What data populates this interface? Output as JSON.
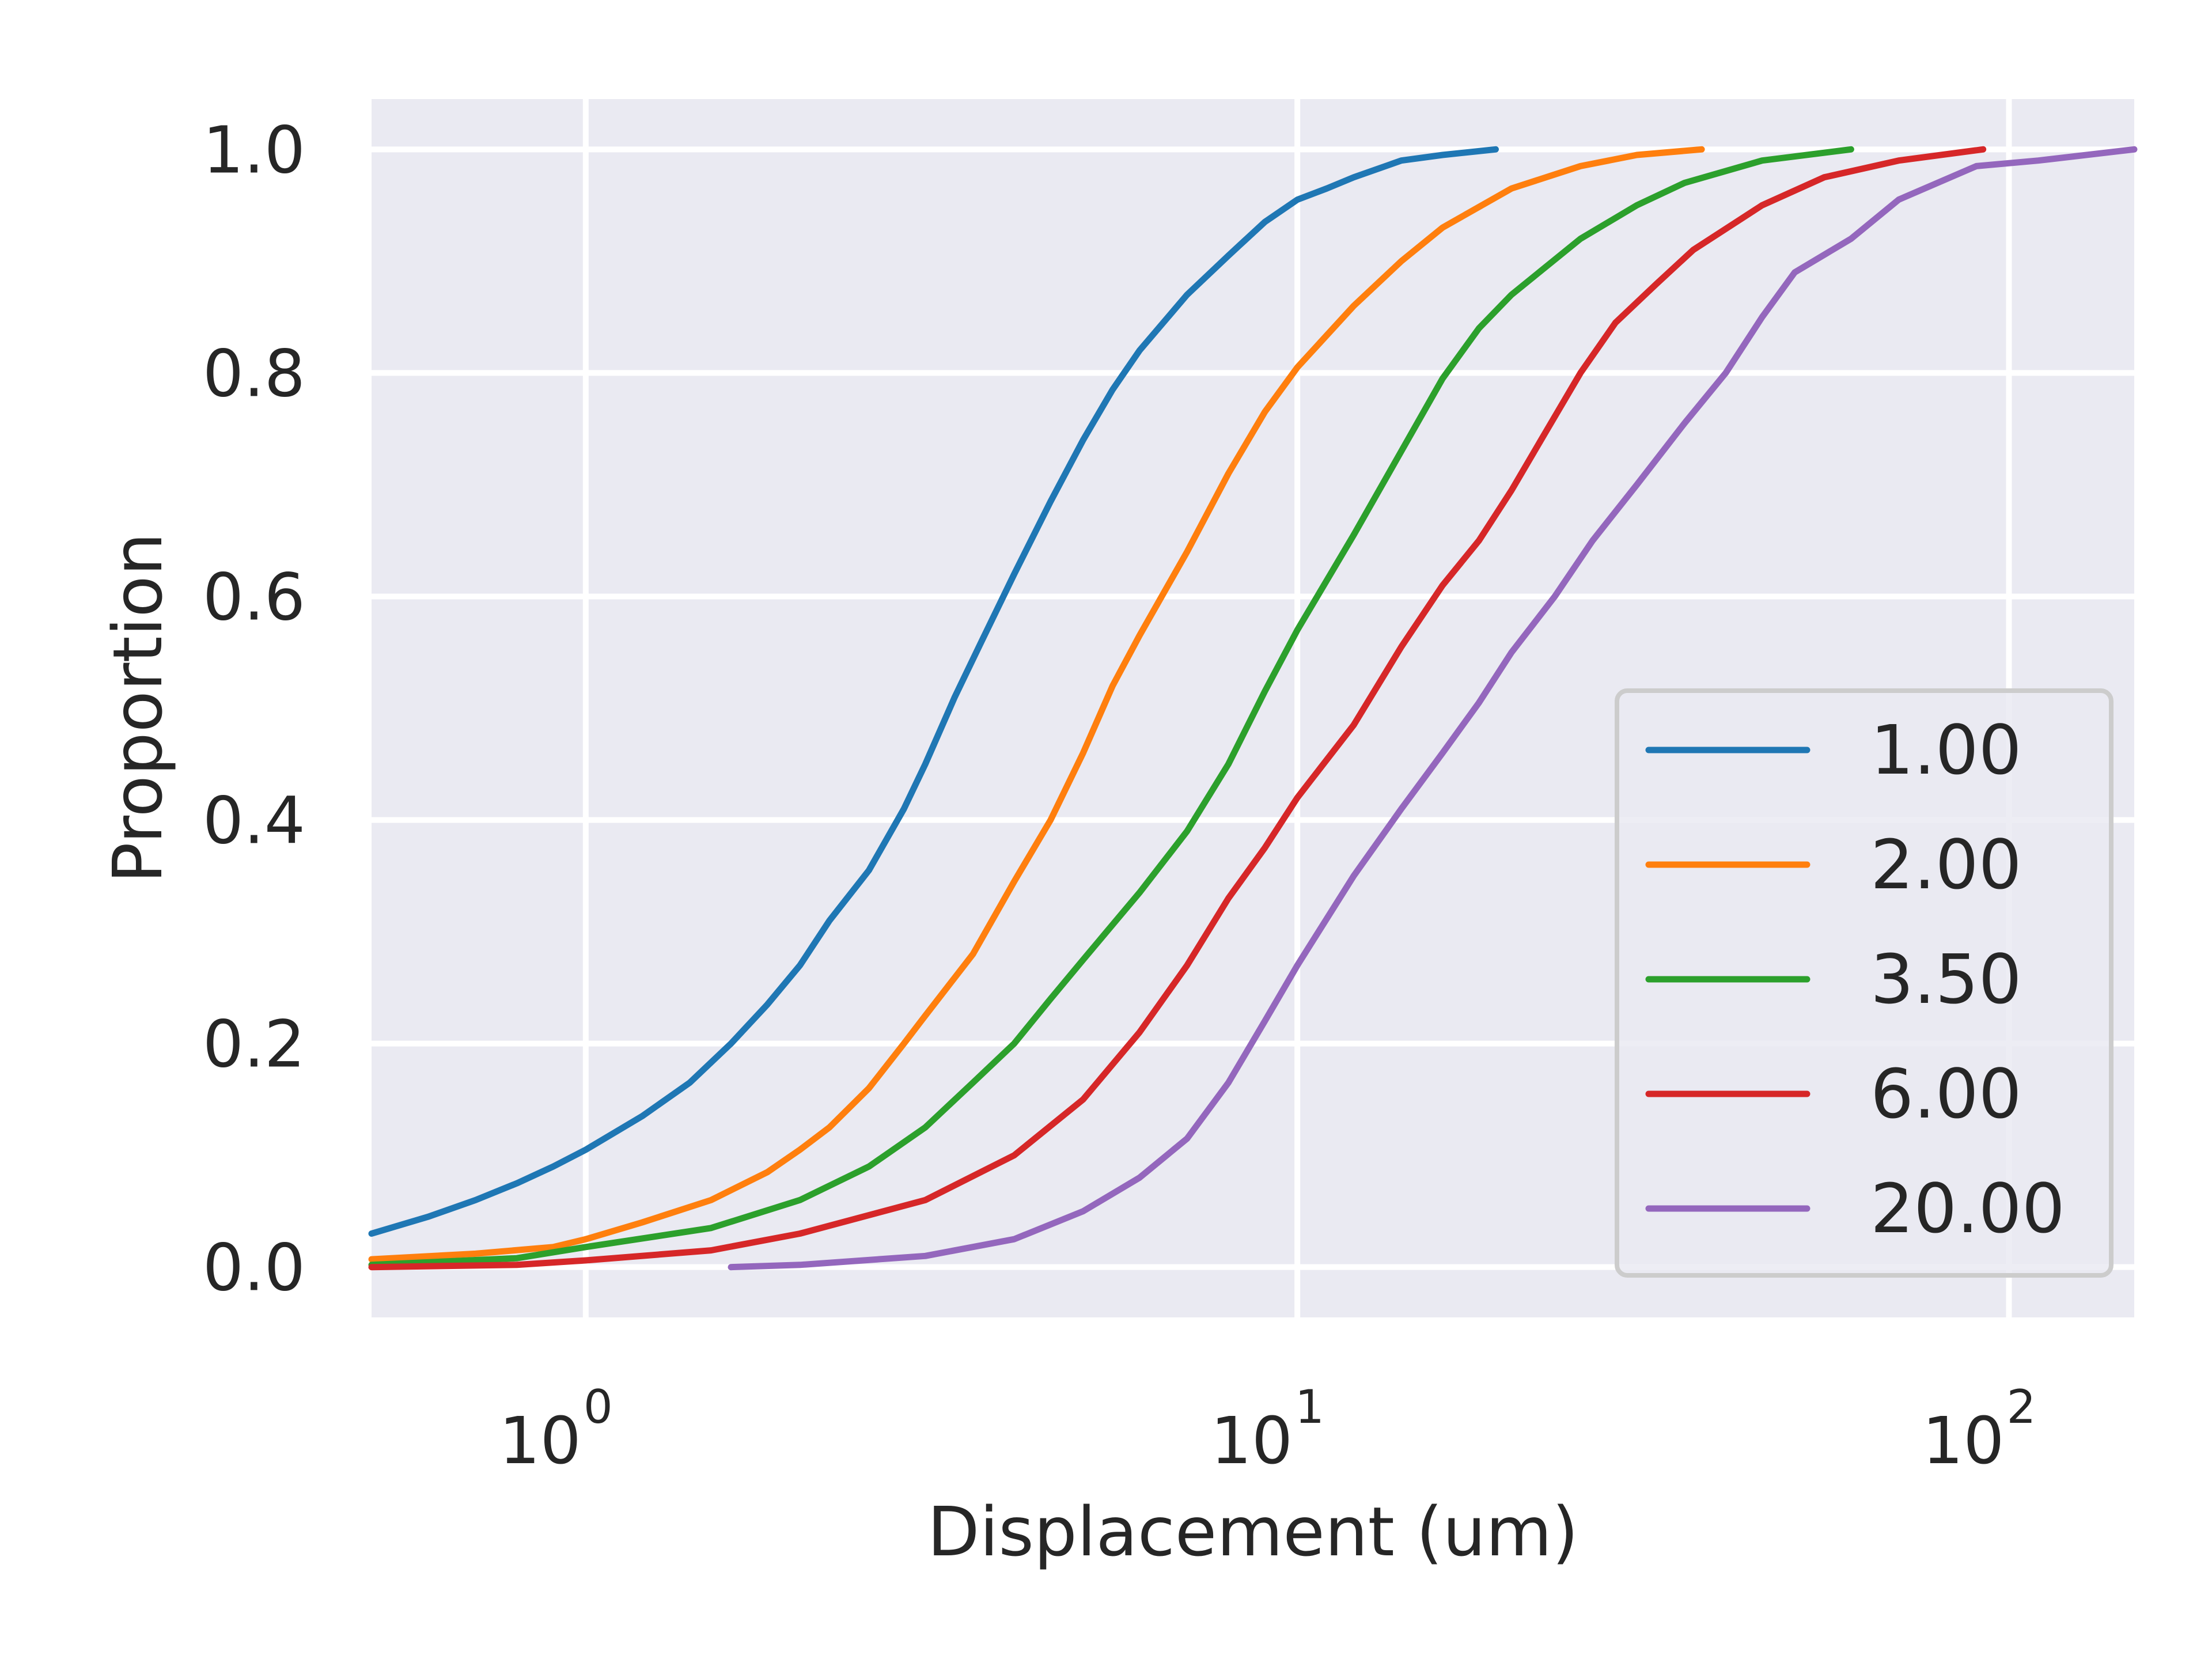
{
  "chart_data": {
    "type": "line",
    "title": "",
    "xlabel": "Displacement (um)",
    "ylabel": "Proportion",
    "xscale": "log",
    "xlim": [
      0.5,
      150
    ],
    "ylim": [
      -0.045,
      1.045
    ],
    "x_ticks": [
      {
        "value": 1,
        "base": "10",
        "exp": "0"
      },
      {
        "value": 10,
        "base": "10",
        "exp": "1"
      },
      {
        "value": 100,
        "base": "10",
        "exp": "2"
      }
    ],
    "y_ticks": [
      {
        "value": 0.0,
        "label": "0.0"
      },
      {
        "value": 0.2,
        "label": "0.2"
      },
      {
        "value": 0.4,
        "label": "0.4"
      },
      {
        "value": 0.6,
        "label": "0.6"
      },
      {
        "value": 0.8,
        "label": "0.8"
      },
      {
        "value": 1.0,
        "label": "1.0"
      }
    ],
    "grid": true,
    "legend_position": "lower-right",
    "series": [
      {
        "name": "1.00",
        "color": "#1f77b4",
        "points": [
          [
            0.5,
            0.03
          ],
          [
            0.6,
            0.045
          ],
          [
            0.7,
            0.06
          ],
          [
            0.8,
            0.075
          ],
          [
            0.9,
            0.09
          ],
          [
            1.0,
            0.105
          ],
          [
            1.2,
            0.135
          ],
          [
            1.4,
            0.165
          ],
          [
            1.6,
            0.2
          ],
          [
            1.8,
            0.235
          ],
          [
            2.0,
            0.27
          ],
          [
            2.2,
            0.31
          ],
          [
            2.5,
            0.355
          ],
          [
            2.8,
            0.41
          ],
          [
            3.0,
            0.45
          ],
          [
            3.3,
            0.51
          ],
          [
            3.6,
            0.56
          ],
          [
            4.0,
            0.62
          ],
          [
            4.5,
            0.685
          ],
          [
            5.0,
            0.74
          ],
          [
            5.5,
            0.785
          ],
          [
            6.0,
            0.82
          ],
          [
            7.0,
            0.87
          ],
          [
            8.0,
            0.905
          ],
          [
            9.0,
            0.935
          ],
          [
            10.0,
            0.955
          ],
          [
            11.0,
            0.965
          ],
          [
            12.0,
            0.975
          ],
          [
            14.0,
            0.99
          ],
          [
            16.0,
            0.995
          ],
          [
            19.0,
            1.0
          ]
        ]
      },
      {
        "name": "2.00",
        "color": "#ff7f0e",
        "points": [
          [
            0.5,
            0.007
          ],
          [
            0.7,
            0.012
          ],
          [
            0.9,
            0.018
          ],
          [
            1.0,
            0.025
          ],
          [
            1.2,
            0.04
          ],
          [
            1.5,
            0.06
          ],
          [
            1.8,
            0.085
          ],
          [
            2.0,
            0.105
          ],
          [
            2.2,
            0.125
          ],
          [
            2.5,
            0.16
          ],
          [
            2.8,
            0.2
          ],
          [
            3.0,
            0.225
          ],
          [
            3.5,
            0.28
          ],
          [
            4.0,
            0.345
          ],
          [
            4.5,
            0.4
          ],
          [
            5.0,
            0.46
          ],
          [
            5.5,
            0.52
          ],
          [
            6.0,
            0.565
          ],
          [
            7.0,
            0.64
          ],
          [
            8.0,
            0.71
          ],
          [
            9.0,
            0.765
          ],
          [
            10.0,
            0.805
          ],
          [
            12.0,
            0.86
          ],
          [
            14.0,
            0.9
          ],
          [
            16.0,
            0.93
          ],
          [
            20.0,
            0.965
          ],
          [
            25.0,
            0.985
          ],
          [
            30.0,
            0.995
          ],
          [
            37.0,
            1.0
          ]
        ]
      },
      {
        "name": "3.50",
        "color": "#2ca02c",
        "points": [
          [
            0.5,
            0.002
          ],
          [
            0.8,
            0.008
          ],
          [
            1.0,
            0.018
          ],
          [
            1.5,
            0.035
          ],
          [
            2.0,
            0.06
          ],
          [
            2.5,
            0.09
          ],
          [
            3.0,
            0.125
          ],
          [
            3.5,
            0.165
          ],
          [
            4.0,
            0.2
          ],
          [
            4.5,
            0.24
          ],
          [
            5.0,
            0.275
          ],
          [
            6.0,
            0.335
          ],
          [
            7.0,
            0.39
          ],
          [
            8.0,
            0.45
          ],
          [
            9.0,
            0.515
          ],
          [
            10.0,
            0.57
          ],
          [
            12.0,
            0.655
          ],
          [
            14.0,
            0.73
          ],
          [
            16.0,
            0.795
          ],
          [
            18.0,
            0.84
          ],
          [
            20.0,
            0.87
          ],
          [
            25.0,
            0.92
          ],
          [
            30.0,
            0.95
          ],
          [
            35.0,
            0.97
          ],
          [
            45.0,
            0.99
          ],
          [
            60.0,
            1.0
          ]
        ]
      },
      {
        "name": "6.00",
        "color": "#d62728",
        "points": [
          [
            0.5,
            0.0
          ],
          [
            0.8,
            0.002
          ],
          [
            1.0,
            0.006
          ],
          [
            1.5,
            0.015
          ],
          [
            2.0,
            0.03
          ],
          [
            3.0,
            0.06
          ],
          [
            4.0,
            0.1
          ],
          [
            5.0,
            0.15
          ],
          [
            6.0,
            0.21
          ],
          [
            7.0,
            0.27
          ],
          [
            8.0,
            0.33
          ],
          [
            9.0,
            0.375
          ],
          [
            10.0,
            0.42
          ],
          [
            12.0,
            0.485
          ],
          [
            14.0,
            0.555
          ],
          [
            16.0,
            0.61
          ],
          [
            18.0,
            0.65
          ],
          [
            20.0,
            0.695
          ],
          [
            22.0,
            0.74
          ],
          [
            25.0,
            0.8
          ],
          [
            28.0,
            0.845
          ],
          [
            32.0,
            0.88
          ],
          [
            36.0,
            0.91
          ],
          [
            45.0,
            0.95
          ],
          [
            55.0,
            0.975
          ],
          [
            70.0,
            0.99
          ],
          [
            92.0,
            1.0
          ]
        ]
      },
      {
        "name": "20.00",
        "color": "#9467bd",
        "points": [
          [
            1.6,
            0.0
          ],
          [
            2.0,
            0.002
          ],
          [
            3.0,
            0.01
          ],
          [
            4.0,
            0.025
          ],
          [
            5.0,
            0.05
          ],
          [
            6.0,
            0.08
          ],
          [
            7.0,
            0.115
          ],
          [
            8.0,
            0.165
          ],
          [
            9.0,
            0.22
          ],
          [
            10.0,
            0.27
          ],
          [
            12.0,
            0.35
          ],
          [
            14.0,
            0.41
          ],
          [
            16.0,
            0.46
          ],
          [
            18.0,
            0.505
          ],
          [
            20.0,
            0.55
          ],
          [
            23.0,
            0.6
          ],
          [
            26.0,
            0.65
          ],
          [
            30.0,
            0.7
          ],
          [
            35.0,
            0.755
          ],
          [
            40.0,
            0.8
          ],
          [
            45.0,
            0.85
          ],
          [
            50.0,
            0.89
          ],
          [
            60.0,
            0.92
          ],
          [
            70.0,
            0.955
          ],
          [
            90.0,
            0.985
          ],
          [
            110.0,
            0.99
          ],
          [
            150.0,
            1.0
          ]
        ]
      }
    ]
  }
}
